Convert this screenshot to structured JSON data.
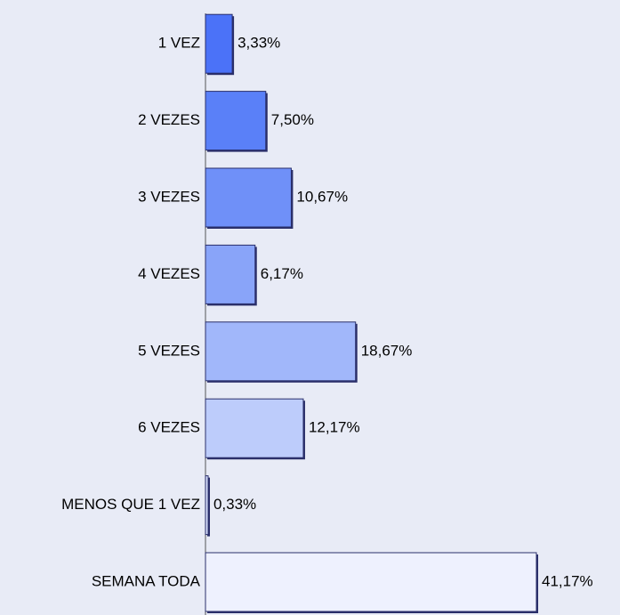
{
  "chart_data": {
    "type": "bar",
    "orientation": "horizontal",
    "categories": [
      "1 VEZ",
      "2 VEZES",
      "3 VEZES",
      "4 VEZES",
      "5 VEZES",
      "6 VEZES",
      "MENOS QUE 1 VEZ",
      "SEMANA TODA"
    ],
    "values": [
      3.33,
      7.5,
      10.67,
      6.17,
      18.67,
      12.17,
      0.33,
      41.17
    ],
    "value_labels": [
      "3,33%",
      "7,50%",
      "10,67%",
      "6,17%",
      "18,67%",
      "12,17%",
      "0,33%",
      "41,17%"
    ],
    "colors": [
      "#4b72f8",
      "#5a80f8",
      "#6f90f8",
      "#89a4f9",
      "#a1b7fa",
      "#bdccfb",
      "#d6defc",
      "#eef1fe"
    ]
  }
}
